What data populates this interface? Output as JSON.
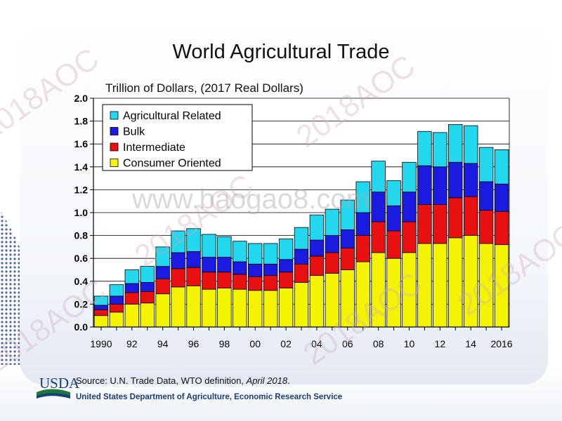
{
  "title": "World Agricultural Trade",
  "source": {
    "prefix": "Source: U.N. Trade Data, WTO definition, ",
    "date": "April 2018",
    "suffix": "."
  },
  "footer": {
    "logo": "USDA",
    "agency": "United States Department of Agriculture, Economic Research Service"
  },
  "watermarks": {
    "stamp": "2018AOC",
    "site": "www.baogao8.com"
  },
  "colors": {
    "agricultural_related": "#22d8ee",
    "bulk": "#1a1ae0",
    "intermediate": "#e81010",
    "consumer_oriented": "#f4f400"
  },
  "chart_data": {
    "type": "bar",
    "stacked": true,
    "ylabel": "Trillion of Dollars, (2017 Real Dollars)",
    "ylim": [
      0,
      2.0
    ],
    "yticks": [
      "0.0",
      "0.2",
      "0.4",
      "0.6",
      "0.8",
      "1.0",
      "1.2",
      "1.4",
      "1.6",
      "1.8",
      "2.0"
    ],
    "categories": [
      "1990",
      "1991",
      "1992",
      "1993",
      "1994",
      "1995",
      "1996",
      "1997",
      "1998",
      "1999",
      "2000",
      "2001",
      "2002",
      "2003",
      "2004",
      "2005",
      "2006",
      "2007",
      "2008",
      "2009",
      "2010",
      "2011",
      "2012",
      "2013",
      "2014",
      "2015",
      "2016"
    ],
    "xtick_labels": [
      "1990",
      "92",
      "94",
      "96",
      "98",
      "00",
      "02",
      "04",
      "06",
      "08",
      "10",
      "12",
      "14",
      "2016"
    ],
    "legend_position": "top-left",
    "series": [
      {
        "name": "Consumer Oriented",
        "color": "#f4f400",
        "values": [
          0.1,
          0.13,
          0.2,
          0.21,
          0.29,
          0.35,
          0.36,
          0.33,
          0.34,
          0.33,
          0.32,
          0.32,
          0.34,
          0.39,
          0.45,
          0.47,
          0.5,
          0.57,
          0.65,
          0.6,
          0.65,
          0.73,
          0.73,
          0.78,
          0.8,
          0.73,
          0.72
        ]
      },
      {
        "name": "Intermediate",
        "color": "#e81010",
        "values": [
          0.05,
          0.07,
          0.1,
          0.1,
          0.13,
          0.16,
          0.16,
          0.15,
          0.14,
          0.13,
          0.12,
          0.13,
          0.14,
          0.16,
          0.17,
          0.18,
          0.19,
          0.23,
          0.27,
          0.24,
          0.27,
          0.34,
          0.34,
          0.35,
          0.34,
          0.29,
          0.29
        ]
      },
      {
        "name": "Bulk",
        "color": "#1a1ae0",
        "values": [
          0.04,
          0.07,
          0.08,
          0.08,
          0.11,
          0.14,
          0.14,
          0.13,
          0.13,
          0.11,
          0.11,
          0.1,
          0.11,
          0.13,
          0.14,
          0.15,
          0.16,
          0.2,
          0.26,
          0.22,
          0.26,
          0.34,
          0.33,
          0.31,
          0.29,
          0.25,
          0.24
        ]
      },
      {
        "name": "Agricultural Related",
        "color": "#22d8ee",
        "values": [
          0.08,
          0.1,
          0.12,
          0.14,
          0.17,
          0.19,
          0.2,
          0.2,
          0.18,
          0.18,
          0.18,
          0.18,
          0.18,
          0.19,
          0.22,
          0.23,
          0.26,
          0.27,
          0.27,
          0.22,
          0.26,
          0.3,
          0.3,
          0.33,
          0.33,
          0.3,
          0.3
        ]
      }
    ]
  }
}
